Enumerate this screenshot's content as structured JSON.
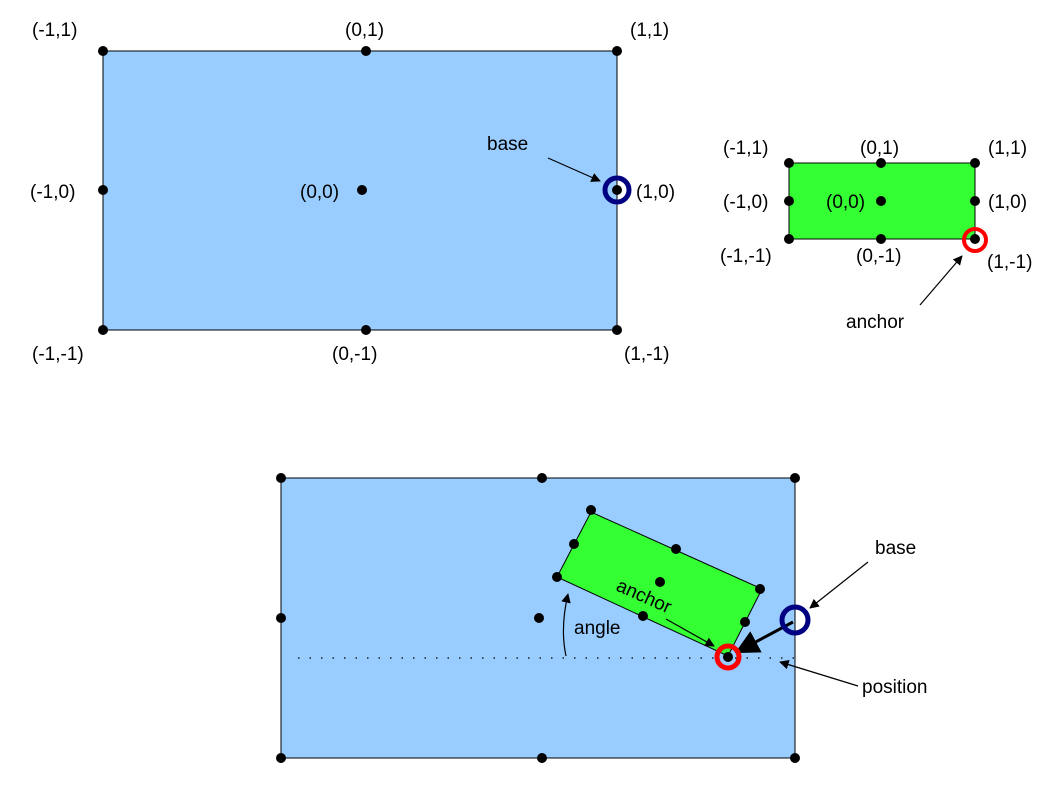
{
  "colors": {
    "parent_fill": "#99ccff",
    "child_fill": "#33ff33",
    "base_ring": "#000080",
    "anchor_ring": "#ff0000",
    "point": "#000000"
  },
  "panel1": {
    "labels": {
      "tl": "(-1,1)",
      "tc": "(0,1)",
      "tr": "(1,1)",
      "ml": "(-1,0)",
      "c": "(0,0)",
      "mr": "(1,0)",
      "bl": "(-1,-1)",
      "bc": "(0,-1)",
      "br": "(1,-1)"
    },
    "callout": "base"
  },
  "panel2": {
    "labels": {
      "tl": "(-1,1)",
      "tc": "(0,1)",
      "tr": "(1,1)",
      "ml": "(-1,0)",
      "c": "(0,0)",
      "mr": "(1,0)",
      "bl": "(-1,-1)",
      "bc": "(0,-1)",
      "br": "(1,-1)"
    },
    "callout": "anchor"
  },
  "panel3": {
    "base_label": "base",
    "position_label": "position",
    "anchor_label": "anchor",
    "angle_label": "angle"
  }
}
